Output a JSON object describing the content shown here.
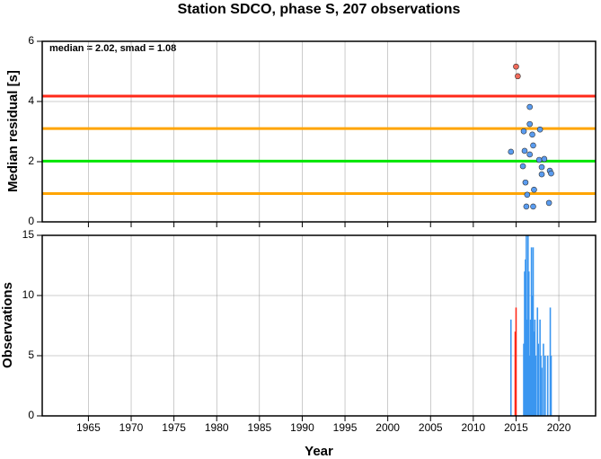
{
  "chart_data": [
    {
      "type": "scatter",
      "title": "Station SDCO, phase S, 207 observations",
      "ylabel": "Median residual [s]",
      "annotation": "median = 2.02, smad = 1.08",
      "xlim": [
        1959.6,
        2024.3
      ],
      "xticks": [
        1965,
        1970,
        1975,
        1980,
        1985,
        1990,
        1995,
        2000,
        2005,
        2010,
        2015,
        2020
      ],
      "ylim": [
        0,
        6
      ],
      "yticks": [
        0,
        2,
        4,
        6
      ],
      "grid": true,
      "hlines": [
        {
          "value": 4.18,
          "color": "#ff2a1a"
        },
        {
          "value": 3.1,
          "color": "#ffa500"
        },
        {
          "value": 2.02,
          "color": "#00e600"
        },
        {
          "value": 0.94,
          "color": "#ffa500"
        }
      ],
      "series": [
        {
          "color": "#f06a5a",
          "x": [
            2015.0,
            2015.2
          ],
          "values": [
            5.16,
            4.84
          ]
        },
        {
          "color": "#5a9cf0",
          "x": [
            2014.4,
            2015.9,
            2016.0,
            2015.8,
            2016.1,
            2016.3,
            2016.2,
            2016.6,
            2016.6,
            2016.9,
            2016.6,
            2017.0,
            2017.1,
            2017.0,
            2017.8,
            2017.7,
            2018.0,
            2018.0,
            2018.3,
            2018.95,
            2019.1,
            2018.85
          ],
          "values": [
            2.33,
            3.01,
            2.36,
            1.85,
            1.31,
            0.9,
            0.51,
            3.82,
            3.25,
            2.9,
            2.24,
            2.54,
            1.07,
            0.51,
            3.07,
            2.06,
            1.82,
            1.58,
            2.09,
            1.7,
            1.61,
            0.63
          ]
        }
      ]
    },
    {
      "type": "bar",
      "ylabel": "Observations",
      "xlabel": "Year",
      "xlim": [
        1959.6,
        2024.3
      ],
      "xticks": [
        1965,
        1970,
        1975,
        1980,
        1985,
        1990,
        1995,
        2000,
        2005,
        2010,
        2015,
        2020
      ],
      "ylim": [
        0,
        15
      ],
      "yticks": [
        0,
        5,
        10,
        15
      ],
      "grid": true,
      "series": [
        {
          "color": "#ff2a1a",
          "x": [
            2014.9,
            2015.0
          ],
          "values": [
            7,
            9
          ]
        },
        {
          "color": "#3a96f0",
          "x": [
            2014.4,
            2015.9,
            2016.0,
            2016.1,
            2016.2,
            2016.3,
            2016.4,
            2016.5,
            2016.6,
            2016.7,
            2016.8,
            2016.9,
            2017.0,
            2017.1,
            2017.2,
            2017.3,
            2017.5,
            2017.6,
            2017.8,
            2017.9,
            2018.0,
            2018.2,
            2018.4,
            2018.7,
            2019.0,
            2019.1
          ],
          "values": [
            8,
            6,
            12,
            13,
            15,
            8,
            15,
            12,
            5,
            8,
            14,
            10,
            14,
            7,
            8,
            5,
            9,
            6,
            8,
            5,
            4,
            6,
            5,
            5,
            9,
            5
          ]
        }
      ]
    }
  ]
}
